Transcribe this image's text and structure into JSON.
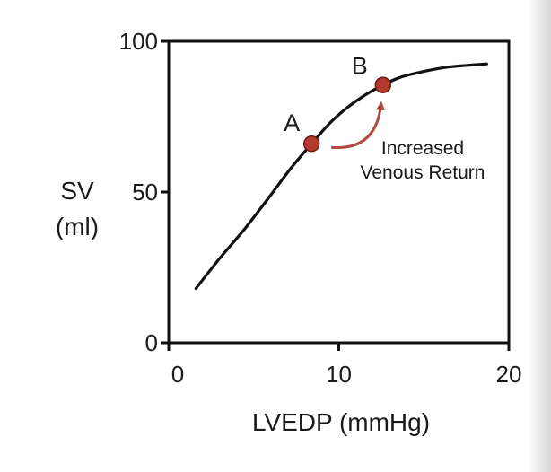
{
  "chart_data": {
    "type": "line",
    "title": "",
    "xlabel": "LVEDP (mmHg)",
    "ylabel": [
      "SV",
      "(ml)"
    ],
    "xlim": [
      0,
      20
    ],
    "ylim": [
      0,
      100
    ],
    "x_ticks": [
      0,
      10,
      20
    ],
    "y_ticks": [
      0,
      50,
      100
    ],
    "grid": false,
    "series": [
      {
        "x": [
          1.6,
          3,
          4.5,
          6,
          7.2,
          8.4,
          9.5,
          10.5,
          11.5,
          12.6,
          13.6,
          15,
          16.5,
          18.7
        ],
        "y": [
          18,
          28,
          38,
          49,
          58,
          66,
          73,
          78,
          82,
          85.5,
          88,
          90,
          91.5,
          92.5
        ]
      }
    ],
    "points": [
      {
        "label": "A",
        "x": 8.4,
        "y": 66
      },
      {
        "label": "B",
        "x": 12.6,
        "y": 85.5
      }
    ],
    "annotation": {
      "lines": [
        "Increased",
        "Venous Return"
      ]
    },
    "colors": {
      "curve": "#111111",
      "marker": "#b53a2e",
      "marker_edge": "#6d1a12",
      "arrow": "#b04a40"
    }
  }
}
